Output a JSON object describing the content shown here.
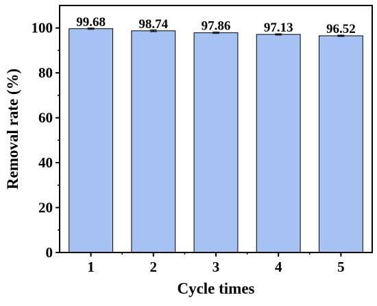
{
  "chart_data": {
    "type": "bar",
    "categories": [
      "1",
      "2",
      "3",
      "4",
      "5"
    ],
    "values": [
      99.68,
      98.74,
      97.86,
      97.13,
      96.52
    ],
    "error": [
      0.3,
      0.4,
      0.3,
      0.3,
      0.3
    ],
    "data_labels": [
      "99.68",
      "98.74",
      "97.86",
      "97.13",
      "96.52"
    ],
    "title": "",
    "xlabel": "Cycle times",
    "ylabel": "Removal rate (%)",
    "ylim": [
      0,
      110
    ],
    "yticks": [
      0,
      20,
      40,
      60,
      80,
      100
    ],
    "ytick_labels": [
      "0",
      "20",
      "40",
      "60",
      "80",
      "100"
    ],
    "grid": false,
    "legend": "none",
    "colors": {
      "bar_fill": "#a6c2f2",
      "bar_edge": "#000000",
      "axis": "#000000"
    }
  }
}
